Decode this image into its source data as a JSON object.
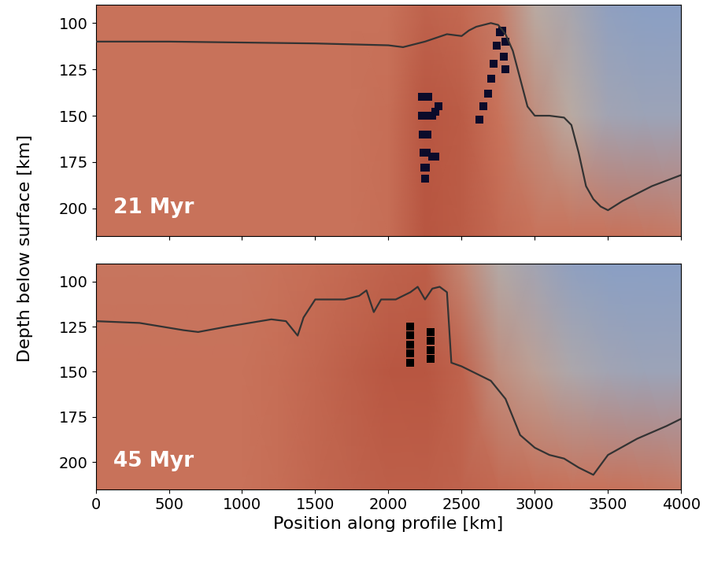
{
  "ylabel": "Depth below surface [km]",
  "chart_data": [
    {
      "type": "line",
      "label": "21 Myr",
      "xlim": [
        0,
        4000
      ],
      "ylim": [
        215,
        90
      ],
      "xticks": [
        0,
        500,
        1000,
        1500,
        2000,
        2500,
        3000,
        3500,
        4000
      ],
      "yticks": [
        100,
        125,
        150,
        175,
        200
      ],
      "tick_labels": "y",
      "color": "#333333",
      "x": [
        0,
        500,
        1000,
        1500,
        2000,
        2100,
        2250,
        2400,
        2500,
        2550,
        2600,
        2700,
        2750,
        2800,
        2850,
        2900,
        2950,
        3000,
        3100,
        3200,
        3250,
        3300,
        3350,
        3400,
        3450,
        3500,
        3600,
        3800,
        4000
      ],
      "values": [
        110,
        110,
        110.5,
        111,
        112,
        113,
        110,
        106,
        107,
        104,
        102,
        100,
        101,
        106,
        115,
        130,
        145,
        150,
        150,
        151,
        155,
        170,
        188,
        195,
        199,
        201,
        196,
        188,
        182
      ],
      "melt": {
        "marker": "s",
        "color": "#0b0b2a",
        "x": [
          2230,
          2240,
          2250,
          2260,
          2270,
          2230,
          2240,
          2250,
          2260,
          2270,
          2235,
          2245,
          2255,
          2265,
          2240,
          2250,
          2260,
          2245,
          2255,
          2250,
          2300,
          2320,
          2340,
          2300,
          2320,
          2620,
          2650,
          2680,
          2700,
          2720,
          2740,
          2760,
          2780,
          2800,
          2790,
          2800
        ],
        "y": [
          140,
          140,
          140,
          140,
          140,
          150,
          150,
          150,
          150,
          150,
          160,
          160,
          160,
          160,
          170,
          170,
          170,
          178,
          178,
          184,
          150,
          148,
          145,
          172,
          172,
          152,
          145,
          138,
          130,
          122,
          112,
          105,
          104,
          110,
          118,
          125
        ]
      },
      "cells_x": [
        0,
        250,
        500,
        750,
        1000,
        1250,
        1500,
        1750,
        2000,
        2250,
        2500,
        2750,
        3000,
        3250,
        3500,
        3750,
        4000
      ],
      "cells_y": [
        90,
        150,
        215
      ],
      "cells": [
        [
          0.3,
          0.3,
          0.3,
          0.3,
          0.3,
          0.3,
          0.3,
          0.3,
          0.3,
          0.22,
          0.25,
          0.35,
          0.6,
          0.75,
          0.95,
          1.0,
          1.0
        ],
        [
          0.3,
          0.3,
          0.3,
          0.3,
          0.3,
          0.3,
          0.3,
          0.3,
          0.28,
          0.15,
          0.18,
          0.3,
          0.45,
          0.6,
          0.8,
          0.85,
          0.85
        ],
        [
          0.3,
          0.3,
          0.3,
          0.3,
          0.3,
          0.3,
          0.3,
          0.3,
          0.28,
          0.15,
          0.18,
          0.25,
          0.3,
          0.3,
          0.3,
          0.32,
          0.35
        ]
      ]
    },
    {
      "type": "line",
      "label": "45 Myr",
      "xlabel": "Position along profile [km]",
      "xlim": [
        0,
        4000
      ],
      "ylim": [
        215,
        90
      ],
      "xticks": [
        0,
        500,
        1000,
        1500,
        2000,
        2500,
        3000,
        3500,
        4000
      ],
      "yticks": [
        100,
        125,
        150,
        175,
        200
      ],
      "color": "#333333",
      "x": [
        0,
        300,
        600,
        700,
        900,
        1200,
        1300,
        1380,
        1420,
        1500,
        1700,
        1800,
        1850,
        1900,
        1950,
        2050,
        2150,
        2200,
        2250,
        2300,
        2350,
        2400,
        2430,
        2500,
        2700,
        2800,
        2850,
        2900,
        3000,
        3100,
        3200,
        3300,
        3400,
        3500,
        3700,
        3900,
        4000
      ],
      "values": [
        122,
        123,
        127,
        128,
        125,
        121,
        122,
        130,
        120,
        110,
        110,
        108,
        105,
        117,
        110,
        110,
        106,
        103,
        110,
        104,
        103,
        106,
        145,
        147,
        155,
        165,
        175,
        185,
        192,
        196,
        198,
        203,
        207,
        196,
        187,
        180,
        176
      ],
      "melt": {
        "marker": "s",
        "color": "#000000",
        "x": [
          2150,
          2150,
          2150,
          2150,
          2150,
          2290,
          2290,
          2290,
          2290
        ],
        "y": [
          125,
          130,
          135,
          140,
          145,
          128,
          133,
          138,
          143
        ]
      },
      "cells_x": [
        0,
        250,
        500,
        750,
        1000,
        1250,
        1500,
        1750,
        2000,
        2250,
        2500,
        2750,
        3000,
        3250,
        3500,
        3750,
        4000
      ],
      "cells_y": [
        90,
        150,
        215
      ],
      "cells": [
        [
          0.32,
          0.32,
          0.32,
          0.32,
          0.32,
          0.3,
          0.28,
          0.25,
          0.22,
          0.2,
          0.4,
          0.65,
          0.8,
          0.95,
          1.0,
          1.0,
          1.0
        ],
        [
          0.3,
          0.3,
          0.3,
          0.3,
          0.3,
          0.28,
          0.24,
          0.2,
          0.16,
          0.15,
          0.22,
          0.45,
          0.55,
          0.7,
          0.8,
          0.85,
          0.85
        ],
        [
          0.3,
          0.3,
          0.3,
          0.3,
          0.3,
          0.28,
          0.24,
          0.22,
          0.2,
          0.2,
          0.22,
          0.25,
          0.28,
          0.3,
          0.3,
          0.32,
          0.35
        ]
      ]
    }
  ]
}
